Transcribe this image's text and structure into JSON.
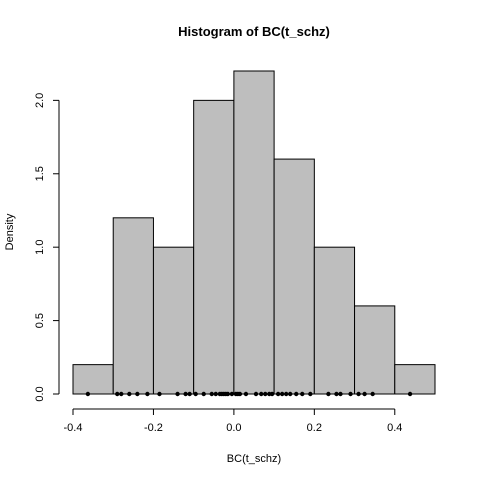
{
  "chart_data": {
    "type": "histogram",
    "title": "Histogram of BC(t_schz)",
    "xlabel": "BC(t_schz)",
    "ylabel": "Density",
    "bar_color": "#bebebe",
    "bins": [
      {
        "start": -0.4,
        "end": -0.3,
        "density": 0.2
      },
      {
        "start": -0.3,
        "end": -0.2,
        "density": 1.2
      },
      {
        "start": -0.2,
        "end": -0.1,
        "density": 1.0
      },
      {
        "start": -0.1,
        "end": 0.0,
        "density": 2.0
      },
      {
        "start": 0.0,
        "end": 0.1,
        "density": 2.2
      },
      {
        "start": 0.1,
        "end": 0.2,
        "density": 1.6
      },
      {
        "start": 0.2,
        "end": 0.3,
        "density": 1.0
      },
      {
        "start": 0.3,
        "end": 0.4,
        "density": 0.6
      },
      {
        "start": 0.4,
        "end": 0.5,
        "density": 0.2
      }
    ],
    "xlim": [
      -0.4,
      0.5
    ],
    "ylim": [
      0,
      2.2
    ],
    "x_ticks": [
      -0.4,
      -0.2,
      0.0,
      0.2,
      0.4
    ],
    "x_tick_labels": [
      "-0.4",
      "-0.2",
      "0.0",
      "0.2",
      "0.4"
    ],
    "y_ticks": [
      0.0,
      0.5,
      1.0,
      1.5,
      2.0
    ],
    "y_tick_labels": [
      "0.0",
      "0.5",
      "1.0",
      "1.5",
      "2.0"
    ],
    "rug_points": [
      -0.363,
      -0.29,
      -0.28,
      -0.26,
      -0.24,
      -0.215,
      -0.185,
      -0.14,
      -0.12,
      -0.11,
      -0.095,
      -0.075,
      -0.055,
      -0.045,
      -0.035,
      -0.03,
      -0.025,
      -0.02,
      -0.015,
      -0.005,
      0.005,
      0.01,
      0.015,
      0.03,
      0.055,
      0.068,
      0.078,
      0.088,
      0.095,
      0.11,
      0.12,
      0.13,
      0.14,
      0.155,
      0.17,
      0.19,
      0.235,
      0.255,
      0.265,
      0.29,
      0.31,
      0.325,
      0.345,
      0.438
    ]
  }
}
